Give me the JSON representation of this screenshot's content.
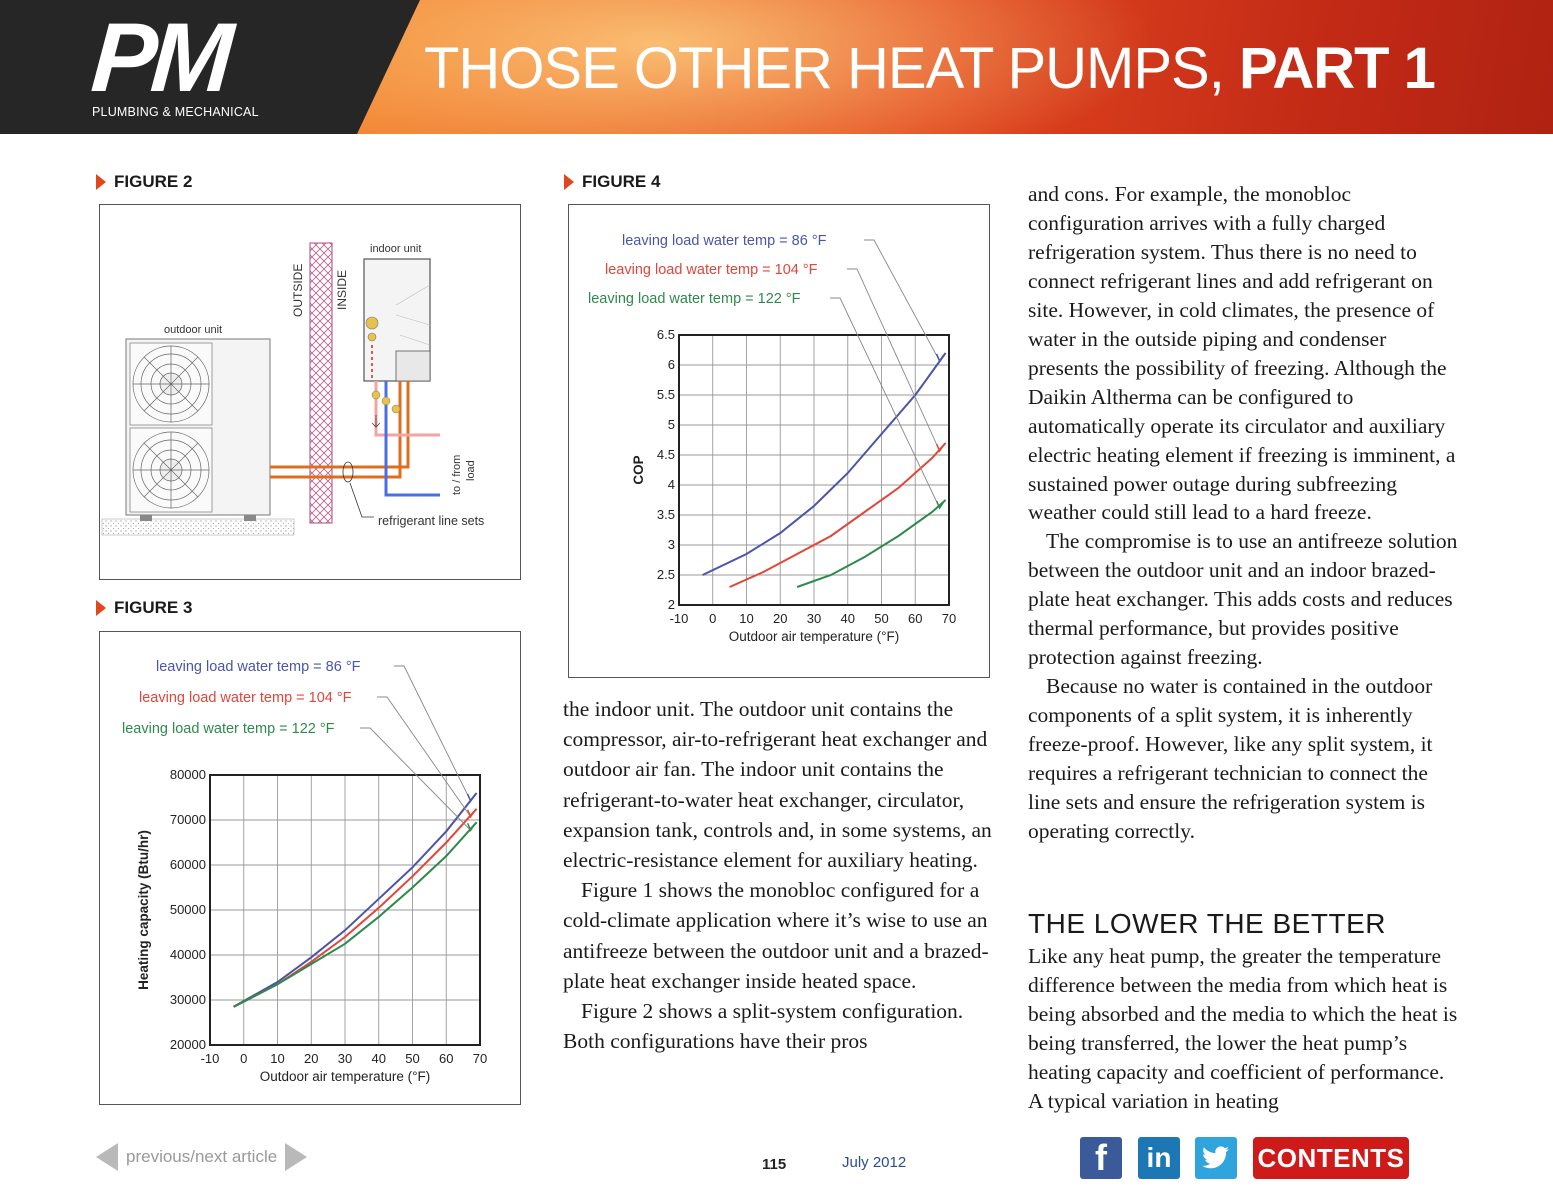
{
  "header": {
    "logo_letters": "PM",
    "logo_subtitle": "PLUMBING & MECHANICAL",
    "title_main": "THOSE OTHER HEAT PUMPS, ",
    "title_bold": "PART 1"
  },
  "figure2": {
    "label": "FIGURE 2",
    "outdoor_unit": "outdoor unit",
    "indoor_unit": "indoor unit",
    "outside": "OUTSIDE",
    "inside": "INSIDE",
    "to_from_load_1": "to / from",
    "to_from_load_2": "load",
    "refrigerant_line_sets": "refrigerant line sets"
  },
  "figure3": {
    "label": "FIGURE 3"
  },
  "figure4": {
    "label": "FIGURE 4"
  },
  "chart_data": [
    {
      "type": "line",
      "figure": "FIGURE 3",
      "xlabel": "Outdoor air temperature (°F)",
      "ylabel": "Heating capacity (Btu/hr)",
      "xlim": [
        -10,
        70
      ],
      "ylim": [
        20000,
        80000
      ],
      "x_ticks": [
        -10,
        0,
        10,
        20,
        30,
        40,
        50,
        60,
        70
      ],
      "y_ticks": [
        20000,
        30000,
        40000,
        50000,
        60000,
        70000,
        80000
      ],
      "grid": true,
      "series": [
        {
          "name": "leaving load water temp = 86 °F",
          "color": "#4a55a8",
          "x": [
            -3,
            10,
            20,
            30,
            40,
            50,
            60,
            69
          ],
          "y": [
            28500,
            34000,
            39500,
            45500,
            52500,
            59500,
            67500,
            76000
          ]
        },
        {
          "name": "leaving load water temp = 104 °F",
          "color": "#e0463a",
          "x": [
            -3,
            10,
            20,
            30,
            40,
            50,
            60,
            69
          ],
          "y": [
            28500,
            33500,
            38500,
            44000,
            50500,
            57500,
            65000,
            72500
          ]
        },
        {
          "name": "leaving load water temp = 122 °F",
          "color": "#2e8a4c",
          "x": [
            -3,
            10,
            20,
            30,
            40,
            50,
            60,
            69
          ],
          "y": [
            28500,
            33500,
            38000,
            42500,
            48500,
            55000,
            62000,
            69500
          ]
        }
      ]
    },
    {
      "type": "line",
      "figure": "FIGURE 4",
      "xlabel": "Outdoor air temperature (°F)",
      "ylabel": "COP",
      "xlim": [
        -10,
        70
      ],
      "ylim": [
        2,
        6.5
      ],
      "x_ticks": [
        -10,
        0,
        10,
        20,
        30,
        40,
        50,
        60,
        70
      ],
      "y_ticks": [
        2,
        2.5,
        3,
        3.5,
        4,
        4.5,
        5,
        5.5,
        6,
        6.5
      ],
      "grid": true,
      "series": [
        {
          "name": "leaving load water temp = 86 °F",
          "color": "#4a55a8",
          "x": [
            -3,
            10,
            20,
            30,
            40,
            50,
            60,
            69
          ],
          "y": [
            2.5,
            2.85,
            3.2,
            3.65,
            4.2,
            4.85,
            5.5,
            6.2
          ]
        },
        {
          "name": "leaving load water temp = 104 °F",
          "color": "#e0463a",
          "x": [
            5,
            15,
            25,
            35,
            45,
            55,
            65,
            69
          ],
          "y": [
            2.3,
            2.55,
            2.85,
            3.15,
            3.55,
            3.95,
            4.45,
            4.7
          ]
        },
        {
          "name": "leaving load water temp = 122 °F",
          "color": "#2e8a4c",
          "x": [
            25,
            35,
            45,
            55,
            65,
            69
          ],
          "y": [
            2.3,
            2.5,
            2.8,
            3.15,
            3.55,
            3.75
          ]
        }
      ]
    }
  ],
  "article": {
    "col2": [
      "the indoor unit. The outdoor unit contains the compressor, air-to-refrigerant heat exchanger and outdoor air fan. The indoor unit contains the refrigerant-to-water heat exchanger, circulator, expansion tank, controls and, in some systems, an electric-resistance element for auxiliary heating.",
      "Figure 1 shows the monobloc configured for a cold-climate application where it’s wise to use an antifreeze between the outdoor unit and a brazed-plate heat exchanger inside heated space.",
      "Figure 2 shows a split-system configuration. Both configurations have their pros"
    ],
    "col3": [
      "and cons. For example, the monobloc configuration arrives with a fully charged refrigeration system. Thus there is no need to connect refrigerant lines and add refrigerant on site. However, in cold climates, the presence of water in the outside piping and condenser presents the possibility of freezing. Although the Daikin Altherma can be configured to automatically operate its circulator and auxiliary electric heating element if freezing is imminent, a sustained power outage during subfreezing weather could still lead to a hard freeze.",
      "The compromise is to use an antifreeze solution between the outdoor unit and an indoor brazed-plate heat exchanger. This adds costs and reduces thermal performance, but provides positive protection against freezing.",
      "Because no water is contained in the outdoor components of a split system, it is inherently freeze-proof. However, like any split system, it requires a refrigerant technician to connect the line sets and ensure the refrigeration system is operating correctly."
    ],
    "section_heading": "THE LOWER THE BETTER",
    "section_text": "Like any heat pump, the greater the temperature difference between the media from which heat is being absorbed and the media to which the heat is being transferred, the lower the heat pump’s heating capacity and coefficient of performance. A typical variation in heating"
  },
  "footer": {
    "nav_label": "previous/next article",
    "page_number": "115",
    "issue_date": "July 2012",
    "facebook": "f",
    "linkedin": "in",
    "twitter": "t",
    "contents": "CONTENTS"
  },
  "colors": {
    "accent": "#e2461e",
    "contents_red": "#cf1a1a",
    "facebook": "#3a5a99",
    "linkedin": "#1e77b5",
    "twitter": "#2fa4dd"
  }
}
